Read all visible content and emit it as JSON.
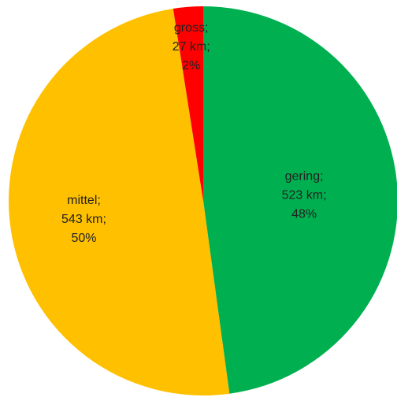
{
  "chart_data": {
    "type": "pie",
    "title": "",
    "start": "top",
    "direction": "clockwise",
    "slices": [
      {
        "label": "gering",
        "value": 523,
        "unit": "km",
        "percent": 48,
        "color": "#00b050",
        "label_lines": [
          "gering;",
          "523 km;",
          "48%"
        ]
      },
      {
        "label": "mittel",
        "value": 543,
        "unit": "km",
        "percent": 50,
        "color": "#ffc000",
        "label_lines": [
          "mittel;",
          "543 km;",
          "50%"
        ]
      },
      {
        "label": "gross",
        "value": 27,
        "unit": "km",
        "percent": 2,
        "color": "#ff0000",
        "label_lines": [
          "gross;",
          "27 km;",
          "2%"
        ]
      }
    ]
  }
}
